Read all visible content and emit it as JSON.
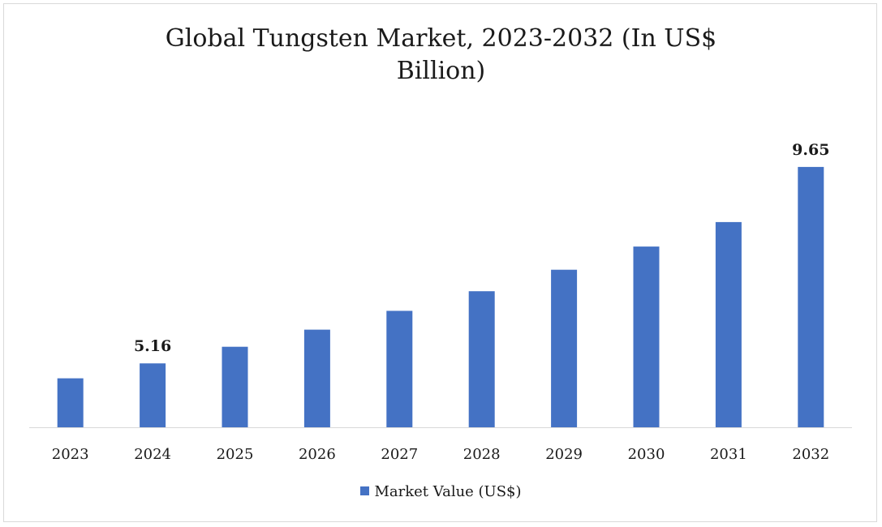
{
  "chart_data": {
    "type": "bar",
    "title_lines": [
      "Global Tungsten Market, 2023-2032 (In US$",
      "Billion)"
    ],
    "categories": [
      "2023",
      "2024",
      "2025",
      "2026",
      "2027",
      "2028",
      "2029",
      "2030",
      "2031",
      "2032"
    ],
    "series": [
      {
        "name": "Market Value (US$)",
        "values": [
          4.82,
          5.16,
          5.54,
          5.93,
          6.36,
          6.81,
          7.3,
          7.83,
          8.39,
          9.65
        ],
        "color": "#4472c4"
      }
    ],
    "data_labels": [
      {
        "index": 1,
        "text": "5.16"
      },
      {
        "index": 9,
        "text": "9.65"
      }
    ],
    "ylim": [
      3.7,
      10.5
    ],
    "grid": false,
    "legend_position": "bottom"
  }
}
